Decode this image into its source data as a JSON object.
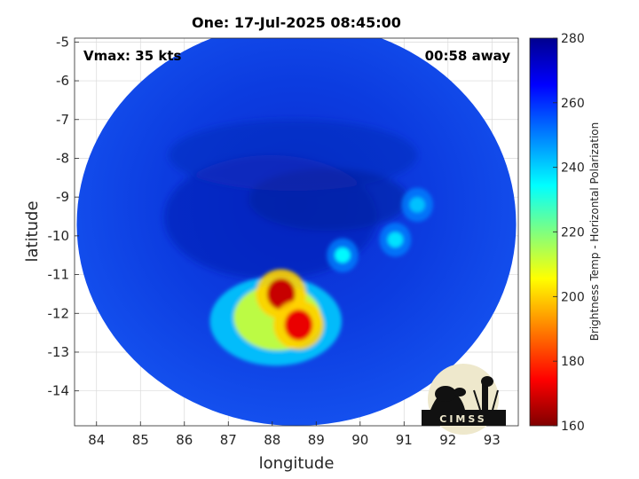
{
  "chart_data": {
    "type": "heatmap",
    "title": "One: 17-Jul-2025 08:45:00",
    "annotations": {
      "vmax": "Vmax: 35 kts",
      "time_away": "00:58 away"
    },
    "xlabel": "longitude",
    "ylabel": "latitude",
    "xlim": [
      83.5,
      93.6
    ],
    "ylim": [
      -14.9,
      -4.9
    ],
    "xticks": [
      "84",
      "85",
      "86",
      "87",
      "88",
      "89",
      "90",
      "91",
      "92",
      "93"
    ],
    "yticks": [
      "-5",
      "-6",
      "-7",
      "-8",
      "-9",
      "-10",
      "-11",
      "-12",
      "-13",
      "-14"
    ],
    "grid": true,
    "colorbar": {
      "label": "Brightness Temp - Horizontal Polarization",
      "range": [
        160,
        280
      ],
      "ticks": [
        "280",
        "260",
        "240",
        "220",
        "200",
        "180",
        "160"
      ],
      "colormap": "jet"
    },
    "swath": {
      "center_lon": 88.55,
      "center_lat": -9.7,
      "radius_lon": 5.0,
      "radius_lat": 5.2
    },
    "features": [
      {
        "name": "eyewall-core-north",
        "lon": 88.2,
        "lat": -11.5,
        "tb": 168
      },
      {
        "name": "eyewall-core-south",
        "lon": 88.6,
        "lat": -12.3,
        "tb": 172
      },
      {
        "name": "convection-arc",
        "lon": 88.0,
        "lat": -12.2,
        "tb": 212
      },
      {
        "name": "outer-band-cell",
        "lon": 89.6,
        "lat": -10.5,
        "tb": 235
      },
      {
        "name": "outer-band-cell",
        "lon": 90.8,
        "lat": -10.1,
        "tb": 238
      },
      {
        "name": "outer-band-cell",
        "lon": 91.3,
        "lat": -9.2,
        "tb": 242
      }
    ],
    "background_tb": 258
  },
  "logo": {
    "text": "CIMSS"
  }
}
